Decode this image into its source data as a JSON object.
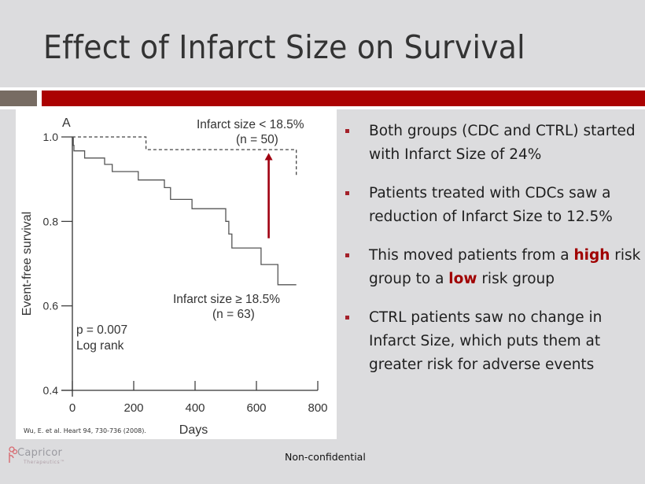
{
  "slide": {
    "title": "Effect of Infarct Size on Survival",
    "footer": "Non-confidential",
    "logo": {
      "name": "Capricor",
      "subtitle": "Therapeutics™"
    },
    "accent_color": "#ab0202",
    "citation": "Wu, E. et al. Heart 94, 730-736 (2008)."
  },
  "bullets": [
    {
      "parts": [
        {
          "text": "Both groups (CDC and CTRL) started with Infarct Size of 24%",
          "highlight": false
        }
      ]
    },
    {
      "parts": [
        {
          "text": "Patients treated with CDCs saw a reduction of Infarct Size to 12.5%",
          "highlight": false
        }
      ]
    },
    {
      "parts": [
        {
          "text": "This moved patients from a ",
          "highlight": false
        },
        {
          "text": "high",
          "highlight": true
        },
        {
          "text": " risk group to a ",
          "highlight": false
        },
        {
          "text": "low",
          "highlight": true
        },
        {
          "text": " risk group",
          "highlight": false
        }
      ]
    },
    {
      "parts": [
        {
          "text": "CTRL patients saw no change in Infarct Size, which puts them at greater risk for adverse events",
          "highlight": false
        }
      ]
    }
  ],
  "chart_data": {
    "type": "line",
    "subtype": "kaplan-meier step",
    "panel_label": "A",
    "xlabel": "Days",
    "ylabel": "Event-free survival",
    "xlim": [
      0,
      800
    ],
    "ylim": [
      0.4,
      1.0
    ],
    "xticks": [
      0,
      200,
      400,
      600,
      800
    ],
    "yticks": [
      0.4,
      0.6,
      0.8,
      1.0
    ],
    "ytick_labels": [
      "0.4",
      "0.6",
      "0.8",
      "1.0"
    ],
    "grid": false,
    "annotations": [
      {
        "text": "p = 0.007",
        "position": "lower-left"
      },
      {
        "text": "Log rank",
        "position": "lower-left"
      }
    ],
    "arrow": {
      "color": "#a00010",
      "x": 640,
      "y_from": 0.76,
      "y_to": 0.96,
      "meaning": "shift from high-risk to low-risk curve"
    },
    "series": [
      {
        "name": "Infarct size < 18.5%",
        "label_line1": "Infarct size < 18.5%",
        "label_line2": "(n = 50)",
        "style": "dashed",
        "steps": [
          [
            0,
            1.0
          ],
          [
            240,
            1.0
          ],
          [
            240,
            0.97
          ],
          [
            730,
            0.97
          ],
          [
            730,
            0.91
          ]
        ]
      },
      {
        "name": "Infarct size ≥ 18.5%",
        "label_line1": "Infarct size ≥ 18.5%",
        "label_line2": "(n = 63)",
        "style": "solid",
        "steps": [
          [
            0,
            1.0
          ],
          [
            3,
            1.0
          ],
          [
            3,
            0.98
          ],
          [
            5,
            0.98
          ],
          [
            5,
            0.967
          ],
          [
            40,
            0.967
          ],
          [
            40,
            0.95
          ],
          [
            105,
            0.95
          ],
          [
            105,
            0.935
          ],
          [
            130,
            0.935
          ],
          [
            130,
            0.918
          ],
          [
            215,
            0.918
          ],
          [
            215,
            0.898
          ],
          [
            300,
            0.898
          ],
          [
            300,
            0.88
          ],
          [
            320,
            0.88
          ],
          [
            320,
            0.852
          ],
          [
            390,
            0.852
          ],
          [
            390,
            0.83
          ],
          [
            500,
            0.83
          ],
          [
            500,
            0.8
          ],
          [
            510,
            0.8
          ],
          [
            510,
            0.77
          ],
          [
            520,
            0.77
          ],
          [
            520,
            0.737
          ],
          [
            615,
            0.737
          ],
          [
            615,
            0.698
          ],
          [
            670,
            0.698
          ],
          [
            670,
            0.65
          ],
          [
            730,
            0.65
          ]
        ]
      }
    ]
  }
}
